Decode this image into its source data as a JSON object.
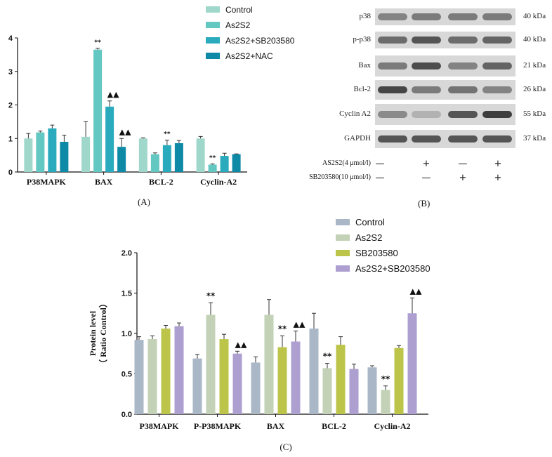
{
  "chart_data": [
    {
      "type": "bar",
      "panel": "A",
      "caption": "(A)",
      "categories": [
        "P38MAPK",
        "BAX",
        "BCL-2",
        "Cyclin-A2"
      ],
      "ylim": [
        0,
        4
      ],
      "yticks": [
        0,
        1,
        2,
        3,
        4
      ],
      "ylabel": "",
      "legend_position": "top-right",
      "series": [
        {
          "name": "Control",
          "color": "#9fd8cb",
          "values": [
            1.0,
            1.05,
            1.0,
            1.0
          ],
          "errors": [
            0.15,
            0.45,
            0.02,
            0.06
          ]
        },
        {
          "name": "As2S2",
          "color": "#63c7c2",
          "values": [
            1.18,
            3.65,
            0.53,
            0.22
          ],
          "errors": [
            0.04,
            0.04,
            0.04,
            0.02
          ]
        },
        {
          "name": "As2S2+SB203580",
          "color": "#2aaabd",
          "values": [
            1.3,
            1.95,
            0.8,
            0.48
          ],
          "errors": [
            0.1,
            0.17,
            0.15,
            0.08
          ]
        },
        {
          "name": "As2S2+NAC",
          "color": "#0e8aa6",
          "values": [
            0.9,
            0.75,
            0.86,
            0.53
          ],
          "errors": [
            0.2,
            0.25,
            0.08,
            0.01
          ]
        }
      ],
      "annotations": [
        {
          "category": "BAX",
          "series": "As2S2",
          "text": "**"
        },
        {
          "category": "BAX",
          "series": "As2S2+SB203580",
          "text": "▲▲"
        },
        {
          "category": "BAX",
          "series": "As2S2+NAC",
          "text": "▲▲"
        },
        {
          "category": "BCL-2",
          "series": "As2S2+SB203580",
          "text": "**"
        },
        {
          "category": "Cyclin-A2",
          "series": "As2S2",
          "text": "**"
        }
      ]
    },
    {
      "type": "bar",
      "panel": "C",
      "caption": "(C)",
      "categories": [
        "P38MAPK",
        "P-P38MAPK",
        "BAX",
        "BCL-2",
        "Cyclin-A2"
      ],
      "ylim": [
        0,
        2.0
      ],
      "yticks": [
        "0.0",
        "0.5",
        "1.0",
        "1.5",
        "2.0"
      ],
      "ylabel_line1": "Protein level",
      "ylabel_line2": "（ Ratio Control）",
      "legend_position": "top-right",
      "series": [
        {
          "name": "Control",
          "color": "#a9b7c6",
          "values": [
            0.92,
            0.69,
            0.64,
            1.06,
            0.58
          ],
          "errors": [
            0.04,
            0.05,
            0.07,
            0.19,
            0.02
          ]
        },
        {
          "name": "As2S2",
          "color": "#c3d1b6",
          "values": [
            0.93,
            1.23,
            1.23,
            0.57,
            0.3
          ],
          "errors": [
            0.04,
            0.15,
            0.19,
            0.06,
            0.05
          ]
        },
        {
          "name": "SB203580",
          "color": "#bcc54a",
          "values": [
            1.06,
            0.93,
            0.83,
            0.86,
            0.82
          ],
          "errors": [
            0.04,
            0.06,
            0.14,
            0.1,
            0.03
          ]
        },
        {
          "name": "As2S2+SB203580",
          "color": "#ad9fd0",
          "values": [
            1.09,
            0.75,
            0.9,
            0.56,
            1.25
          ],
          "errors": [
            0.04,
            0.03,
            0.13,
            0.06,
            0.19
          ]
        }
      ],
      "annotations": [
        {
          "category": "P-P38MAPK",
          "series": "As2S2",
          "text": "**"
        },
        {
          "category": "P-P38MAPK",
          "series": "As2S2+SB203580",
          "text": "▲▲"
        },
        {
          "category": "BAX",
          "series": "SB203580",
          "text": "**"
        },
        {
          "category": "BAX",
          "series": "As2S2+SB203580",
          "text": "▲▲"
        },
        {
          "category": "BCL-2",
          "series": "As2S2",
          "text": "**"
        },
        {
          "category": "Cyclin-A2",
          "series": "As2S2",
          "text": "**"
        },
        {
          "category": "Cyclin-A2",
          "series": "As2S2+SB203580",
          "text": "▲▲"
        }
      ]
    }
  ],
  "western_blot": {
    "caption": "(B)",
    "proteins": [
      {
        "name": "p38",
        "size": "40 kDa"
      },
      {
        "name": "p-p38",
        "size": "40 kDa"
      },
      {
        "name": "Bax",
        "size": "21 kDa"
      },
      {
        "name": "Bcl-2",
        "size": "26 kDa"
      },
      {
        "name": "Cyclin A2",
        "size": "55 kDa"
      },
      {
        "name": "GAPDH",
        "size": "37 kDa"
      }
    ],
    "treatments": [
      {
        "name": "AS2S2(4 μmol/l)",
        "signs": [
          "—",
          "+",
          "—",
          "+"
        ]
      },
      {
        "name": "SB203580(10 μmol/l)",
        "signs": [
          "—",
          "—",
          "+",
          "+"
        ]
      }
    ]
  }
}
